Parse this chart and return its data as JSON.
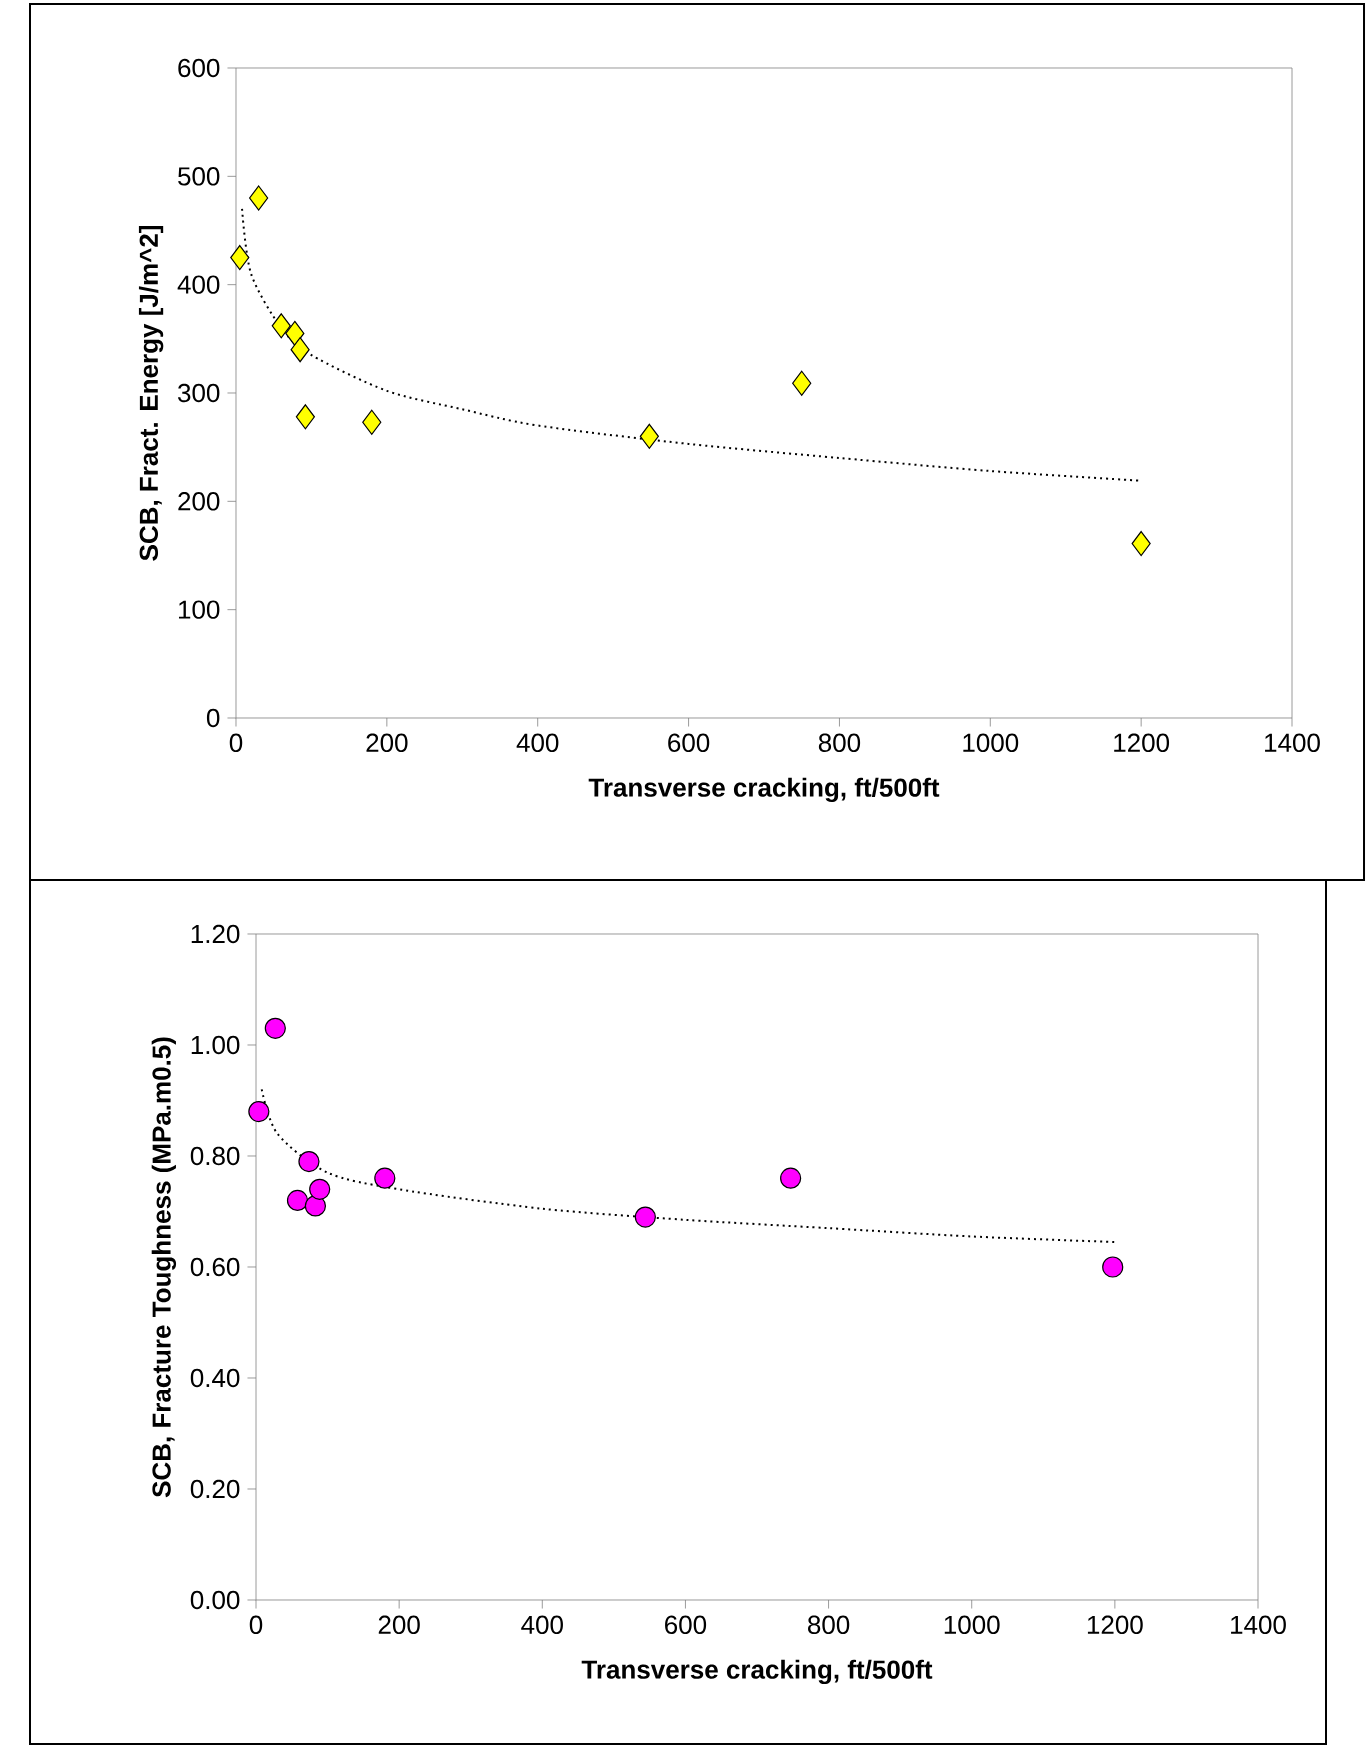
{
  "chart_data": [
    {
      "type": "scatter",
      "xlabel": "Transverse cracking, ft/500ft",
      "ylabel": "SCB, Fract. Energy [J/m^2]",
      "xlim": [
        0,
        1400
      ],
      "ylim": [
        0,
        600
      ],
      "xticks": [
        0,
        200,
        400,
        600,
        800,
        1000,
        1200,
        1400
      ],
      "yticks": [
        0,
        100,
        200,
        300,
        400,
        500,
        600
      ],
      "series": [
        {
          "color": "#ffff00",
          "marker": "diamond",
          "x": [
            5,
            30,
            60,
            78,
            85,
            92,
            180,
            548,
            750,
            1200
          ],
          "values": [
            425,
            480,
            362,
            355,
            340,
            278,
            273,
            260,
            309,
            161
          ]
        },
        {
          "type": "line",
          "color": "#000000",
          "line_style": "dotted",
          "x": [
            8,
            20,
            60,
            100,
            200,
            300,
            400,
            600,
            800,
            1000,
            1200
          ],
          "values": [
            470,
            410,
            360,
            335,
            302,
            285,
            270,
            253,
            240,
            228,
            219
          ]
        }
      ]
    },
    {
      "type": "scatter",
      "xlabel": "Transverse cracking, ft/500ft",
      "ylabel": "SCB, Fracture Toughness  (MPa.m0.5)",
      "xlim": [
        0,
        1400
      ],
      "ylim": [
        0,
        1.2
      ],
      "xticks": [
        0,
        200,
        400,
        600,
        800,
        1000,
        1200,
        1400
      ],
      "yticks": [
        {
          "value": 0,
          "label": "0.00"
        },
        {
          "value": 0.2,
          "label": "0.20"
        },
        {
          "value": 0.4,
          "label": "0.40"
        },
        {
          "value": 0.6,
          "label": "0.60"
        },
        {
          "value": 0.8,
          "label": "0.80"
        },
        {
          "value": 1.0,
          "label": "1.00"
        },
        {
          "value": 1.2,
          "label": "1.20"
        }
      ],
      "series": [
        {
          "color": "#ff00ff",
          "marker": "circle",
          "x": [
            4,
            27,
            74,
            58,
            83,
            89,
            180,
            544,
            747,
            1197
          ],
          "values": [
            0.88,
            1.03,
            0.79,
            0.72,
            0.71,
            0.74,
            0.76,
            0.69,
            0.76,
            0.6
          ]
        },
        {
          "type": "line",
          "color": "#000000",
          "line_style": "dotted",
          "x": [
            8,
            30,
            100,
            200,
            400,
            600,
            800,
            1000,
            1200
          ],
          "values": [
            0.92,
            0.84,
            0.77,
            0.74,
            0.705,
            0.685,
            0.67,
            0.655,
            0.645
          ]
        }
      ]
    }
  ]
}
